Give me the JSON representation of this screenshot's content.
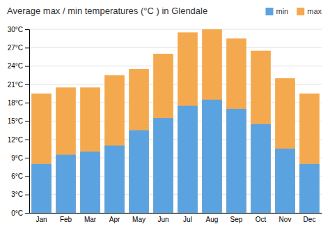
{
  "chart_data": {
    "type": "bar",
    "title": "Average max / min temperatures (°C ) in Glendale",
    "categories": [
      "Jan",
      "Feb",
      "Mar",
      "Apr",
      "May",
      "Jun",
      "Jul",
      "Aug",
      "Sep",
      "Oct",
      "Nov",
      "Dec"
    ],
    "series": [
      {
        "name": "min",
        "color": "#5ba3e0",
        "values": [
          8,
          9.5,
          10,
          11,
          13.5,
          15.5,
          17.5,
          18.5,
          17,
          14.5,
          10.5,
          8
        ]
      },
      {
        "name": "max",
        "color": "#f5a94e",
        "values": [
          19.5,
          20.5,
          20.5,
          22.5,
          23.5,
          26,
          29.5,
          30,
          28.5,
          26.5,
          22,
          19.5
        ]
      }
    ],
    "ylim": [
      0,
      30
    ],
    "yticks": [
      {
        "value": 0,
        "label": "0°C"
      },
      {
        "value": 3,
        "label": "3°C"
      },
      {
        "value": 6,
        "label": "6°C"
      },
      {
        "value": 9,
        "label": "9°C"
      },
      {
        "value": 12,
        "label": "12°C"
      },
      {
        "value": 15,
        "label": "15°C"
      },
      {
        "value": 18,
        "label": "18°C"
      },
      {
        "value": 21,
        "label": "21°C"
      },
      {
        "value": 24,
        "label": "24°C"
      },
      {
        "value": 27,
        "label": "27°C"
      },
      {
        "value": 30,
        "label": "30°C"
      }
    ],
    "grid": true,
    "legend": "top-right"
  }
}
